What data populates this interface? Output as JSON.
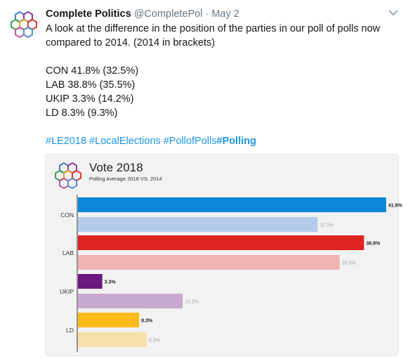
{
  "tweet": {
    "author_name": "Complete Politics",
    "handle": "@CompletePol",
    "separator": "·",
    "date": "May 2",
    "text_line1": "A look at the difference in the position of the parties in our poll of polls now compared to 2014. (2014 in brackets)",
    "results": [
      "CON 41.8% (32.5%)",
      "LAB 38.8% (35.5%)",
      "UKIP 3.3% (14.2%)",
      "LD 8.3% (9.3%)"
    ],
    "hashtags": [
      "#LE2018",
      "#LocalElections",
      "#PollofPolls",
      "#Polling"
    ],
    "avatar_icon": "hexagon-logo-icon",
    "menu_icon": "chevron-down-icon"
  },
  "chart_data": {
    "type": "bar",
    "title": "Vote 2018",
    "subtitle": "Polling Average 2018 VS. 2014",
    "categories": [
      "CON",
      "LAB",
      "UKIP",
      "LD"
    ],
    "series": [
      {
        "values": [
          41.8,
          38.8,
          3.3,
          8.3
        ],
        "colors": [
          "#0a87d9",
          "#df2323",
          "#6c1880",
          "#fdbb1a"
        ]
      },
      {
        "values": [
          32.5,
          35.5,
          14.2,
          9.3
        ],
        "colors": [
          "#b3ccec",
          "#f2b3b3",
          "#c9a9cf",
          "#f7e0a9"
        ]
      }
    ],
    "value_labels": [
      [
        "41.8%",
        "38.8%",
        "3.3%",
        "8.3%"
      ],
      [
        "32.5%",
        "35.5%",
        "14.2%",
        "9.3%"
      ]
    ],
    "orientation": "horizontal",
    "xlim": [
      0,
      45
    ],
    "grid": false,
    "legend": "none"
  }
}
